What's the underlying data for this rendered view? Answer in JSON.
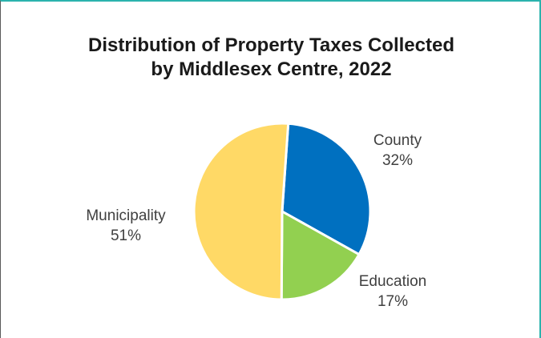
{
  "chart_data": {
    "type": "pie",
    "title_lines": [
      "Distribution of Property Taxes Collected",
      "by Middlesex Centre, 2022"
    ],
    "categories": [
      "County",
      "Education",
      "Municipality"
    ],
    "values": [
      32,
      17,
      51
    ],
    "value_labels": [
      "32%",
      "17%",
      "51%"
    ],
    "colors": [
      "#0070c0",
      "#92d050",
      "#ffd966"
    ],
    "legend": "none",
    "data_labels": "outside"
  }
}
